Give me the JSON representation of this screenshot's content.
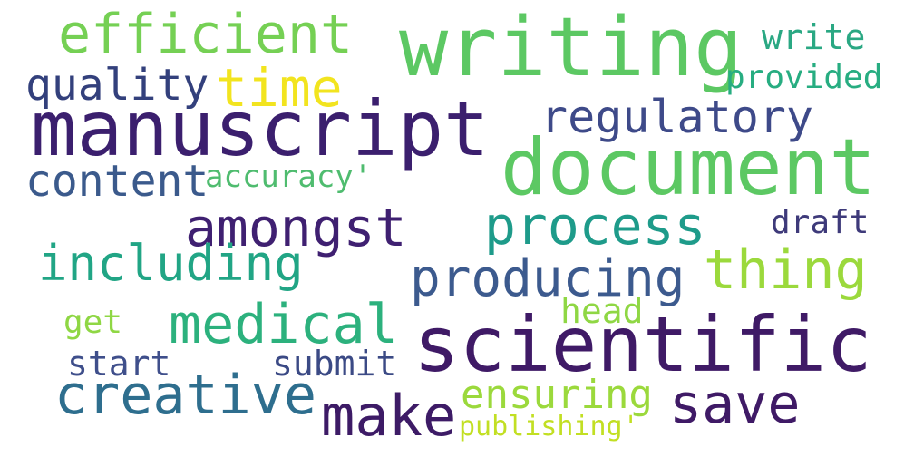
{
  "words": [
    {
      "text": "manuscript",
      "color": "#3b1f6e"
    },
    {
      "text": "writing",
      "color": "#5cc863"
    },
    {
      "text": "document",
      "color": "#5cc863"
    },
    {
      "text": "scientific",
      "color": "#3f1a66"
    },
    {
      "text": "efficient",
      "color": "#75d054"
    },
    {
      "text": "time",
      "color": "#f2e41f"
    },
    {
      "text": "quality",
      "color": "#33407c"
    },
    {
      "text": "regulatory",
      "color": "#3e4a89"
    },
    {
      "text": "content",
      "color": "#3b5a8c"
    },
    {
      "text": "accuracy'",
      "color": "#4fbc6f"
    },
    {
      "text": "amongst",
      "color": "#3f2071"
    },
    {
      "text": "process",
      "color": "#1e9b8a"
    },
    {
      "text": "including",
      "color": "#21a585"
    },
    {
      "text": "producing",
      "color": "#3c5a8e"
    },
    {
      "text": "thing",
      "color": "#9bd93c"
    },
    {
      "text": "draft",
      "color": "#3e3a7a"
    },
    {
      "text": "medical",
      "color": "#2cb17d"
    },
    {
      "text": "head",
      "color": "#8fd744"
    },
    {
      "text": "get",
      "color": "#8fd744"
    },
    {
      "text": "start",
      "color": "#3f4f8b"
    },
    {
      "text": "submit",
      "color": "#3b4a85"
    },
    {
      "text": "creative",
      "color": "#2e6e8e"
    },
    {
      "text": "make",
      "color": "#3d1b66"
    },
    {
      "text": "ensuring",
      "color": "#9bd93c"
    },
    {
      "text": "save",
      "color": "#3f1a66"
    },
    {
      "text": "publishing'",
      "color": "#c2df23"
    },
    {
      "text": "write",
      "color": "#2aa883"
    },
    {
      "text": "provided",
      "color": "#27ad81"
    }
  ]
}
